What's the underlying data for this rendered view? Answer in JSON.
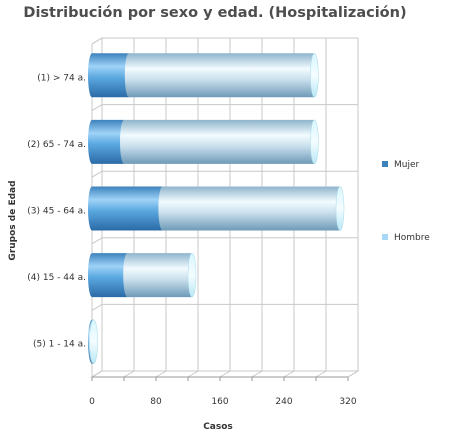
{
  "chart_data": {
    "type": "bar",
    "orientation": "horizontal",
    "stacked": true,
    "style": "3d-cylinder",
    "title": "Distribución por sexo y edad. (Hospitalización)",
    "xlabel": "Casos",
    "ylabel": "Grupos de Edad",
    "xlim": [
      0,
      320
    ],
    "xticks": [
      "0",
      "80",
      "160",
      "240",
      "320"
    ],
    "grid": true,
    "legend_position": "right",
    "categories": [
      "(1) > 74 a.",
      "(2) 65 - 74 a.",
      "(3) 45 - 64 a.",
      "(4) 15 - 44 a.",
      "(5) 1 - 14 a."
    ],
    "series": [
      {
        "name": "Mujer",
        "color": "#4a90c8",
        "values": [
          46,
          40,
          88,
          44,
          1
        ]
      },
      {
        "name": "Hombre",
        "color": "#a7c6db",
        "values": [
          232,
          238,
          222,
          81,
          1
        ]
      }
    ]
  }
}
